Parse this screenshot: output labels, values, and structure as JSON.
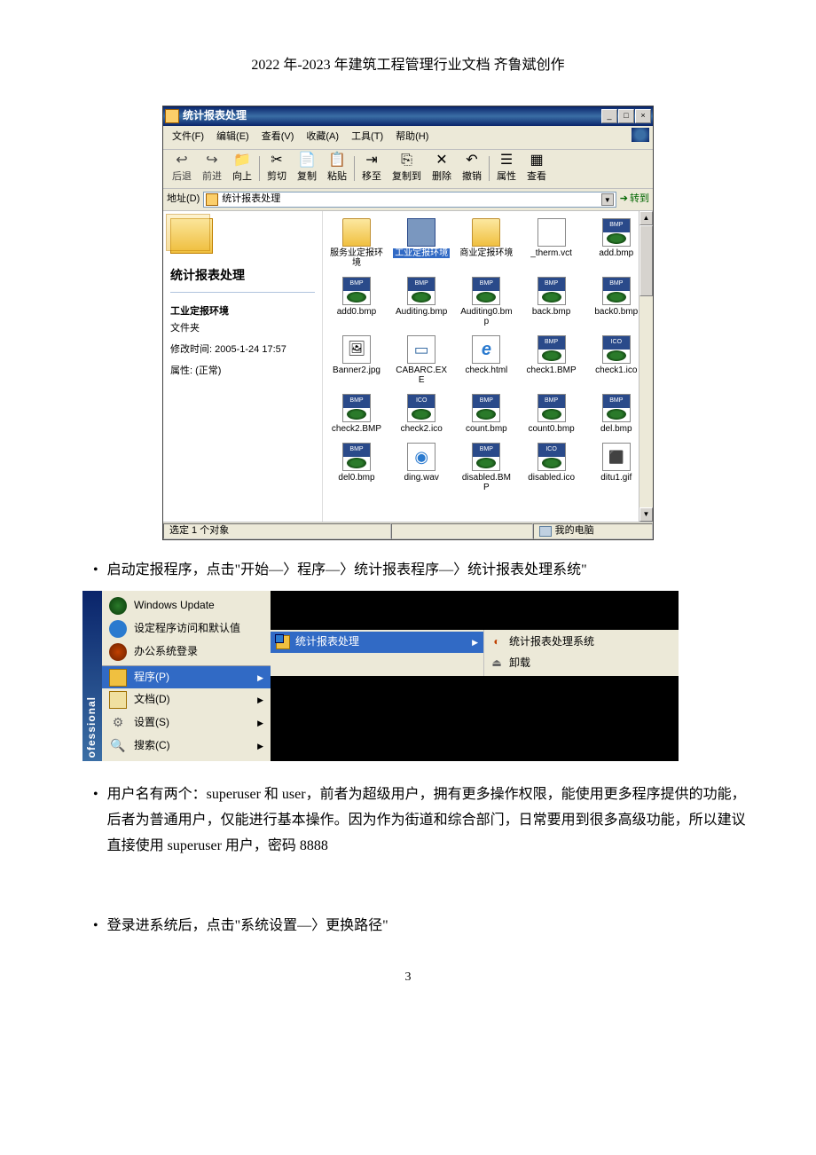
{
  "doc": {
    "header": "2022 年-2023 年建筑工程管理行业文档 齐鲁斌创作",
    "page_number": "3"
  },
  "explorer": {
    "title": "统计报表处理",
    "window_buttons": {
      "min": "_",
      "max": "□",
      "close": "×"
    },
    "menus": {
      "file": "文件(F)",
      "edit": "编辑(E)",
      "view": "查看(V)",
      "fav": "收藏(A)",
      "tools": "工具(T)",
      "help": "帮助(H)"
    },
    "toolbar": {
      "back": "后退",
      "forward": "前进",
      "up": "向上",
      "cut": "剪切",
      "copy": "复制",
      "paste": "粘贴",
      "moveto": "移至",
      "copyto": "复制到",
      "delete": "删除",
      "undo": "撤销",
      "prop": "属性",
      "views": "查看"
    },
    "address": {
      "label": "地址(D)",
      "value": "统计报表处理",
      "go": "转到"
    },
    "side": {
      "title": "统计报表处理",
      "sel_name": "工业定报环境",
      "sel_type": "文件夹",
      "modified_label": "修改时间: ",
      "modified": "2005-1-24 17:57",
      "attr_label": "属性: ",
      "attr": "(正常)"
    },
    "files": [
      {
        "label": "服务业定报环境",
        "icon": "folder"
      },
      {
        "label": "工业定报环境",
        "icon": "folder",
        "selected": true
      },
      {
        "label": "商业定报环境",
        "icon": "folder"
      },
      {
        "label": "_therm.vct",
        "icon": "vct"
      },
      {
        "label": "add.bmp",
        "icon": "bmp"
      },
      {
        "label": "add0.bmp",
        "icon": "bmp"
      },
      {
        "label": "Auditing.bmp",
        "icon": "bmp"
      },
      {
        "label": "Auditing0.bmp",
        "icon": "bmp"
      },
      {
        "label": "back.bmp",
        "icon": "bmp"
      },
      {
        "label": "back0.bmp",
        "icon": "bmp"
      },
      {
        "label": "Banner2.jpg",
        "icon": "jpg"
      },
      {
        "label": "CABARC.EXE",
        "icon": "exe"
      },
      {
        "label": "check.html",
        "icon": "html"
      },
      {
        "label": "check1.BMP",
        "icon": "bmp"
      },
      {
        "label": "check1.ico",
        "icon": "ico"
      },
      {
        "label": "check2.BMP",
        "icon": "bmp"
      },
      {
        "label": "check2.ico",
        "icon": "ico"
      },
      {
        "label": "count.bmp",
        "icon": "bmp"
      },
      {
        "label": "count0.bmp",
        "icon": "bmp"
      },
      {
        "label": "del.bmp",
        "icon": "bmp"
      },
      {
        "label": "del0.bmp",
        "icon": "bmp"
      },
      {
        "label": "ding.wav",
        "icon": "wav"
      },
      {
        "label": "disabled.BMP",
        "icon": "bmp"
      },
      {
        "label": "disabled.ico",
        "icon": "ico"
      },
      {
        "label": "ditu1.gif",
        "icon": "gif"
      }
    ],
    "status": {
      "left": "选定 1 个对象",
      "right": "我的电脑"
    }
  },
  "body_text": {
    "bullet1": "启动定报程序，点击\"开始—〉程序—〉统计报表程序—〉统计报表处理系统\"",
    "bullet2": "用户名有两个：superuser 和 user，前者为超级用户，拥有更多操作权限，能使用更多程序提供的功能，后者为普通用户，仅能进行基本操作。因为作为街道和综合部门，日常要用到很多高级功能，所以建议直接使用 superuser 用户，密码 8888",
    "bullet3": "登录进系统后，点击\"系统设置—〉更换路径\""
  },
  "startmenu": {
    "strip": "ofessional",
    "top": [
      {
        "label": "Windows Update",
        "icon": "wu"
      },
      {
        "label": "设定程序访问和默认值",
        "icon": "setacc"
      },
      {
        "label": "办公系统登录",
        "icon": "office"
      }
    ],
    "main": [
      {
        "label": "程序(P)",
        "icon": "prog",
        "arrow": true,
        "hl": true
      },
      {
        "label": "文档(D)",
        "icon": "docs",
        "arrow": true
      },
      {
        "label": "设置(S)",
        "icon": "set",
        "arrow": true
      },
      {
        "label": "搜索(C)",
        "icon": "search",
        "arrow": true
      }
    ],
    "sub1": [
      {
        "label": "统计报表处理",
        "hl": true,
        "arrow": true
      }
    ],
    "sub2": [
      {
        "label": "统计报表处理系统",
        "icon": "sys"
      },
      {
        "label": "卸载",
        "icon": "unload"
      }
    ]
  },
  "colors": {
    "titlebar_grad_a": "#0a246a",
    "titlebar_grad_b": "#3a6ea5",
    "win_bg": "#ece9d8",
    "highlight": "#316ac5",
    "folder_fill": "#f0c040",
    "folder_border": "#c09030",
    "text": "#000000",
    "page_bg": "#ffffff"
  }
}
